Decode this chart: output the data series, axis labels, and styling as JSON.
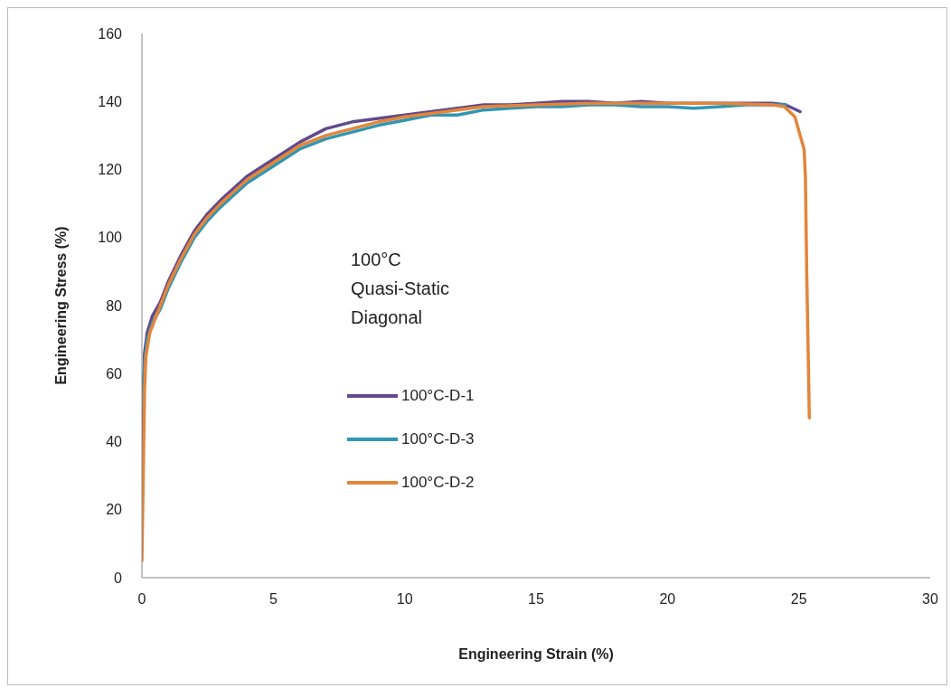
{
  "chart_data": {
    "type": "line",
    "xlabel": "Engineering Strain  (%)",
    "ylabel": "Engineering Stress (%)",
    "annotations": [
      "100°C",
      "Quasi-Static",
      "Diagonal"
    ],
    "xlim": [
      0,
      30
    ],
    "xticks": [
      0,
      5,
      10,
      15,
      20,
      25,
      30
    ],
    "ylim": [
      0,
      160
    ],
    "yticks": [
      0,
      20,
      40,
      60,
      80,
      100,
      120,
      140,
      160
    ],
    "grid": false,
    "legend": "center",
    "marker": "none",
    "line_style": "solid",
    "series": [
      {
        "name": "100°C-D-1",
        "color": "#604a8c",
        "x": [
          0,
          0.05,
          0.1,
          0.2,
          0.4,
          0.7,
          1,
          1.5,
          2,
          2.5,
          3,
          4,
          5,
          6,
          7,
          8,
          9,
          10,
          11,
          12,
          13,
          14,
          15,
          16,
          17,
          18,
          19,
          20,
          21,
          22,
          23,
          24,
          24.5,
          25.05
        ],
        "values": [
          25,
          55,
          66,
          72,
          77,
          81,
          87,
          95,
          102,
          107,
          111,
          118,
          123,
          128,
          132,
          134,
          135,
          136,
          137,
          138,
          139,
          139,
          139.5,
          140,
          140,
          139.5,
          140,
          139.5,
          139.5,
          139.5,
          139.5,
          139.5,
          139,
          137
        ]
      },
      {
        "name": "100°C-D-3",
        "color": "#3096b4",
        "x": [
          0.05,
          0.1,
          0.2,
          0.4,
          0.7,
          1,
          1.5,
          2,
          2.5,
          3,
          4,
          5,
          6,
          7,
          8,
          9,
          10,
          11,
          12,
          13,
          14,
          15,
          16,
          17,
          18,
          19,
          20,
          21,
          22,
          23,
          24,
          24.5
        ],
        "values": [
          50,
          63,
          70,
          75,
          79,
          85,
          93,
          100,
          105,
          109,
          116,
          121,
          126,
          129,
          131,
          133,
          134.5,
          136,
          136,
          137.5,
          138,
          138.5,
          138.5,
          139,
          139,
          138.5,
          138.5,
          138,
          138.5,
          139,
          139,
          139
        ]
      },
      {
        "name": "100°C-D-2",
        "color": "#e4853a",
        "x": [
          0,
          0.05,
          0.1,
          0.15,
          0.3,
          0.7,
          1,
          1.5,
          2,
          2.5,
          3,
          4,
          5,
          6,
          7,
          8,
          9,
          10,
          11,
          12,
          13,
          15,
          17,
          20,
          22,
          24,
          24.45,
          24.85,
          25.05,
          25.2,
          25.25,
          25.3,
          25.4
        ],
        "values": [
          5,
          30,
          55,
          65,
          72,
          80,
          86,
          94,
          101,
          106,
          110,
          117,
          122,
          127,
          130,
          132,
          134,
          135.5,
          136.5,
          137.5,
          138.5,
          139,
          139.5,
          139.5,
          139.5,
          139,
          138.5,
          135.5,
          130,
          126,
          118,
          90,
          47
        ]
      }
    ]
  }
}
